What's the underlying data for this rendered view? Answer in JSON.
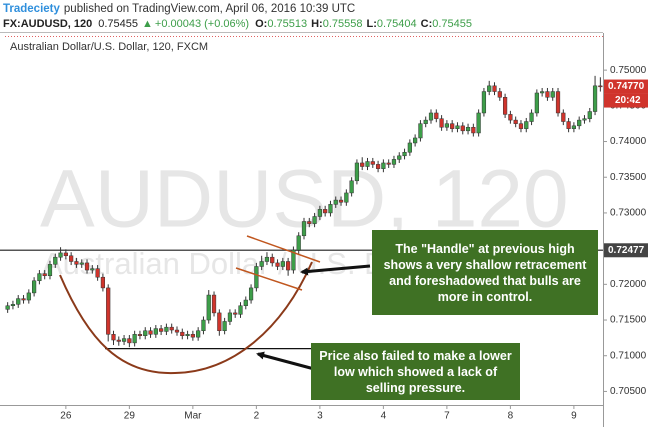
{
  "chart_data": {
    "type": "candlestick",
    "publisher": "Tradeciety",
    "published_text": "published on TradingView.com, April 06, 2016 10:39 UTC",
    "symbol": "FX:AUDUSD, 120",
    "last": 0.75455,
    "change": "+0.00043 (+0.06%)",
    "ohlc_labels": [
      "O:",
      "H:",
      "L:",
      "C:"
    ],
    "ohlc_values": [
      0.75513,
      0.75558,
      0.75404,
      0.75455
    ],
    "title": "Australian Dollar/U.S. Dollar, 120, FXCM",
    "watermark": "AUDUSD, 120",
    "watermark_subtitle": "Australian Dollar / U.S. Dollar",
    "up_color": "#3d9e49",
    "down_color": "#d0342c",
    "categories": [
      null,
      null,
      null,
      null,
      null,
      null,
      null,
      null,
      null,
      null,
      null,
      "26",
      null,
      null,
      null,
      null,
      null,
      null,
      null,
      null,
      null,
      null,
      null,
      "29",
      null,
      null,
      null,
      null,
      null,
      null,
      null,
      null,
      null,
      null,
      null,
      "Mar",
      null,
      null,
      null,
      null,
      null,
      null,
      null,
      null,
      null,
      null,
      null,
      "2",
      null,
      null,
      null,
      null,
      null,
      null,
      null,
      null,
      null,
      null,
      null,
      "3",
      null,
      null,
      null,
      null,
      null,
      null,
      null,
      null,
      null,
      null,
      null,
      "4",
      null,
      null,
      null,
      null,
      null,
      null,
      null,
      null,
      null,
      null,
      null,
      "7",
      null,
      null,
      null,
      null,
      null,
      null,
      null,
      null,
      null,
      null,
      null,
      "8",
      null,
      null,
      null,
      null,
      null,
      null,
      null,
      null,
      null,
      null,
      null,
      "9",
      null,
      null,
      null,
      null,
      null
    ],
    "ohlc": [
      [
        0.7165,
        0.7175,
        0.716,
        0.717
      ],
      [
        0.717,
        0.7177,
        0.7165,
        0.7172
      ],
      [
        0.7172,
        0.7185,
        0.7167,
        0.718
      ],
      [
        0.718,
        0.7185,
        0.7173,
        0.7178
      ],
      [
        0.7178,
        0.7193,
        0.7173,
        0.7188
      ],
      [
        0.7188,
        0.721,
        0.7183,
        0.7205
      ],
      [
        0.7205,
        0.722,
        0.72,
        0.7215
      ],
      [
        0.7215,
        0.722,
        0.7207,
        0.7212
      ],
      [
        0.7212,
        0.7233,
        0.7207,
        0.7228
      ],
      [
        0.7228,
        0.7243,
        0.7223,
        0.7238
      ],
      [
        0.7238,
        0.7252,
        0.7233,
        0.7244
      ],
      [
        0.7244,
        0.7249,
        0.7235,
        0.724
      ],
      [
        0.724,
        0.7245,
        0.7227,
        0.7232
      ],
      [
        0.7232,
        0.7237,
        0.7223,
        0.7228
      ],
      [
        0.7228,
        0.7235,
        0.7223,
        0.723
      ],
      [
        0.723,
        0.7235,
        0.7215,
        0.722
      ],
      [
        0.722,
        0.7227,
        0.7215,
        0.7222
      ],
      [
        0.7222,
        0.7227,
        0.7205,
        0.721
      ],
      [
        0.721,
        0.7215,
        0.719,
        0.7195
      ],
      [
        0.7195,
        0.72,
        0.712,
        0.713
      ],
      [
        0.713,
        0.7135,
        0.7115,
        0.7122
      ],
      [
        0.7122,
        0.7127,
        0.7114,
        0.712
      ],
      [
        0.712,
        0.7129,
        0.7115,
        0.7124
      ],
      [
        0.7124,
        0.7129,
        0.7112,
        0.7118
      ],
      [
        0.7118,
        0.7135,
        0.7113,
        0.713
      ],
      [
        0.713,
        0.7135,
        0.7123,
        0.7128
      ],
      [
        0.7128,
        0.714,
        0.7123,
        0.7135
      ],
      [
        0.7135,
        0.714,
        0.7125,
        0.713
      ],
      [
        0.713,
        0.7143,
        0.7125,
        0.7138
      ],
      [
        0.7138,
        0.7143,
        0.7129,
        0.7134
      ],
      [
        0.7134,
        0.7145,
        0.7129,
        0.714
      ],
      [
        0.714,
        0.7145,
        0.7131,
        0.7136
      ],
      [
        0.7136,
        0.7141,
        0.7128,
        0.7133
      ],
      [
        0.7133,
        0.7138,
        0.7123,
        0.7128
      ],
      [
        0.7128,
        0.7135,
        0.7123,
        0.713
      ],
      [
        0.713,
        0.7135,
        0.7121,
        0.7126
      ],
      [
        0.7126,
        0.714,
        0.7121,
        0.7135
      ],
      [
        0.7135,
        0.7155,
        0.713,
        0.715
      ],
      [
        0.715,
        0.7192,
        0.7145,
        0.7185
      ],
      [
        0.7185,
        0.719,
        0.7155,
        0.716
      ],
      [
        0.716,
        0.7165,
        0.7128,
        0.7135
      ],
      [
        0.7135,
        0.7153,
        0.713,
        0.7148
      ],
      [
        0.7148,
        0.7165,
        0.7143,
        0.716
      ],
      [
        0.716,
        0.7165,
        0.7153,
        0.7158
      ],
      [
        0.7158,
        0.7175,
        0.7153,
        0.717
      ],
      [
        0.717,
        0.7183,
        0.7165,
        0.7178
      ],
      [
        0.7178,
        0.72,
        0.7173,
        0.7195
      ],
      [
        0.7195,
        0.723,
        0.719,
        0.7225
      ],
      [
        0.7225,
        0.724,
        0.722,
        0.7232
      ],
      [
        0.7232,
        0.7245,
        0.7227,
        0.7238
      ],
      [
        0.7238,
        0.7243,
        0.7225,
        0.723
      ],
      [
        0.723,
        0.7235,
        0.722,
        0.7225
      ],
      [
        0.7225,
        0.7237,
        0.722,
        0.7232
      ],
      [
        0.7232,
        0.7237,
        0.7212,
        0.722
      ],
      [
        0.722,
        0.7253,
        0.7215,
        0.7248
      ],
      [
        0.7248,
        0.7273,
        0.7243,
        0.7268
      ],
      [
        0.7268,
        0.7293,
        0.7263,
        0.7288
      ],
      [
        0.7288,
        0.7293,
        0.728,
        0.7285
      ],
      [
        0.7285,
        0.73,
        0.728,
        0.7295
      ],
      [
        0.7295,
        0.731,
        0.729,
        0.7305
      ],
      [
        0.7305,
        0.731,
        0.7295,
        0.73
      ],
      [
        0.73,
        0.7317,
        0.7295,
        0.7312
      ],
      [
        0.7312,
        0.7323,
        0.7307,
        0.7318
      ],
      [
        0.7318,
        0.7323,
        0.731,
        0.7315
      ],
      [
        0.7315,
        0.7333,
        0.731,
        0.7328
      ],
      [
        0.7328,
        0.735,
        0.7323,
        0.7345
      ],
      [
        0.7345,
        0.7375,
        0.734,
        0.737
      ],
      [
        0.737,
        0.7378,
        0.736,
        0.7365
      ],
      [
        0.7365,
        0.7377,
        0.736,
        0.7372
      ],
      [
        0.7372,
        0.7377,
        0.7363,
        0.7368
      ],
      [
        0.7368,
        0.7373,
        0.7357,
        0.7362
      ],
      [
        0.7362,
        0.7375,
        0.7357,
        0.737
      ],
      [
        0.737,
        0.7375,
        0.7363,
        0.7368
      ],
      [
        0.7368,
        0.738,
        0.7363,
        0.7375
      ],
      [
        0.7375,
        0.7385,
        0.737,
        0.738
      ],
      [
        0.738,
        0.739,
        0.7375,
        0.7385
      ],
      [
        0.7385,
        0.7403,
        0.738,
        0.7398
      ],
      [
        0.7398,
        0.741,
        0.7393,
        0.7405
      ],
      [
        0.7405,
        0.743,
        0.74,
        0.7425
      ],
      [
        0.7425,
        0.7435,
        0.742,
        0.743
      ],
      [
        0.743,
        0.7445,
        0.7425,
        0.744
      ],
      [
        0.744,
        0.7445,
        0.7427,
        0.7432
      ],
      [
        0.7432,
        0.7437,
        0.7415,
        0.742
      ],
      [
        0.742,
        0.743,
        0.7415,
        0.7425
      ],
      [
        0.7425,
        0.743,
        0.7413,
        0.7418
      ],
      [
        0.7418,
        0.7427,
        0.7413,
        0.7422
      ],
      [
        0.7422,
        0.7427,
        0.741,
        0.7415
      ],
      [
        0.7415,
        0.7425,
        0.741,
        0.742
      ],
      [
        0.742,
        0.7425,
        0.7407,
        0.7412
      ],
      [
        0.7412,
        0.7445,
        0.7407,
        0.744
      ],
      [
        0.744,
        0.7475,
        0.7435,
        0.747
      ],
      [
        0.747,
        0.7485,
        0.7465,
        0.7478
      ],
      [
        0.7478,
        0.7483,
        0.7465,
        0.747
      ],
      [
        0.747,
        0.7475,
        0.7457,
        0.7462
      ],
      [
        0.7462,
        0.7467,
        0.7433,
        0.7438
      ],
      [
        0.7438,
        0.7443,
        0.7425,
        0.743
      ],
      [
        0.743,
        0.7435,
        0.742,
        0.7425
      ],
      [
        0.7425,
        0.743,
        0.7413,
        0.7418
      ],
      [
        0.7418,
        0.7433,
        0.7413,
        0.7428
      ],
      [
        0.7428,
        0.7445,
        0.7423,
        0.744
      ],
      [
        0.744,
        0.7473,
        0.7435,
        0.7468
      ],
      [
        0.7468,
        0.7475,
        0.7463,
        0.747
      ],
      [
        0.747,
        0.7475,
        0.7457,
        0.7462
      ],
      [
        0.7462,
        0.7475,
        0.7457,
        0.747
      ],
      [
        0.747,
        0.7475,
        0.7435,
        0.744
      ],
      [
        0.744,
        0.7445,
        0.7423,
        0.7428
      ],
      [
        0.7428,
        0.7433,
        0.7413,
        0.7418
      ],
      [
        0.7418,
        0.7427,
        0.7413,
        0.7422
      ],
      [
        0.7422,
        0.7435,
        0.7417,
        0.743
      ],
      [
        0.743,
        0.7437,
        0.7425,
        0.7432
      ],
      [
        0.7432,
        0.7447,
        0.7427,
        0.7442
      ],
      [
        0.7442,
        0.7492,
        0.7437,
        0.7478
      ],
      [
        0.7478,
        0.749,
        0.747,
        0.7477
      ]
    ],
    "ylim": [
      0.7031,
      0.7552
    ],
    "yticks": [
      {
        "value": 0.705,
        "label": "0.70500"
      },
      {
        "value": 0.71,
        "label": "0.71000"
      },
      {
        "value": 0.715,
        "label": "0.71500"
      },
      {
        "value": 0.72,
        "label": "0.72000"
      },
      {
        "value": 0.73,
        "label": "0.73000"
      },
      {
        "value": 0.735,
        "label": "0.73500"
      },
      {
        "value": 0.74,
        "label": "0.74000"
      },
      {
        "value": 0.745,
        "label": "0.74500"
      },
      {
        "value": 0.75,
        "label": "0.75000"
      }
    ],
    "resistance_level": {
      "value": 0.72477,
      "label": "0.72477"
    },
    "support_level": 0.711,
    "last_price": {
      "value": 0.7477,
      "label": "0.74770"
    },
    "countdown": "20:42",
    "annotations": [
      "The \"Handle\" at previous high shows a very shallow retracement and foreshadowed that bulls are more in control.",
      "Price also failed to make a lower low which showed a lack of selling pressure."
    ]
  }
}
